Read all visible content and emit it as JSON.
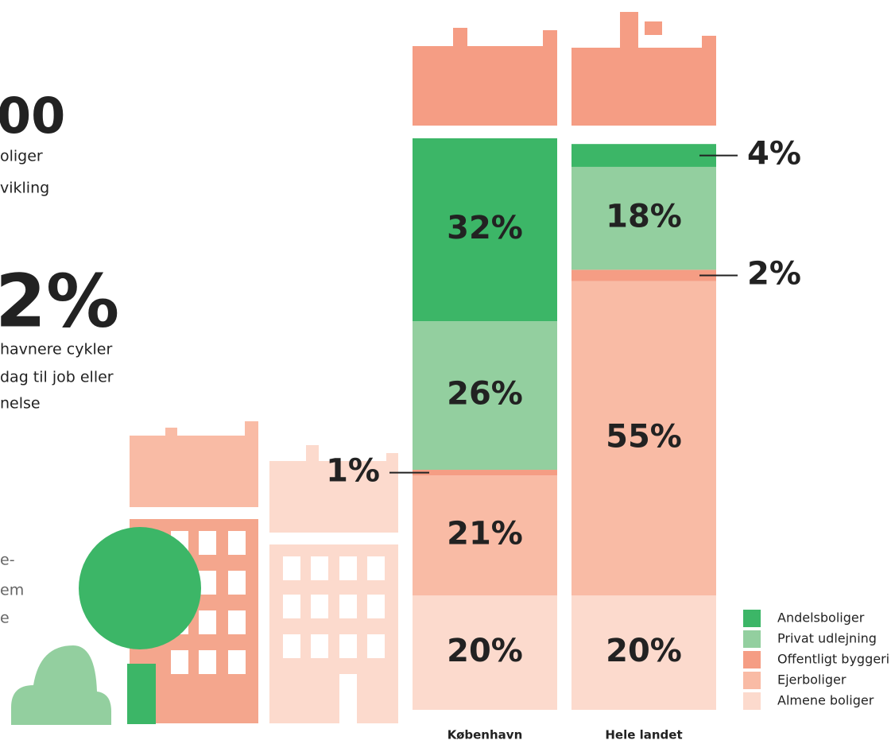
{
  "left_panel": {
    "figure1": "00",
    "lines1": [
      "oliger",
      "vikling"
    ],
    "figure2": "2%",
    "lines2": [
      "havnere cykler",
      "dag til job eller",
      "nelse"
    ],
    "lines3": [
      "e-",
      "em",
      "e"
    ]
  },
  "chart_data": {
    "type": "stacked-bar",
    "categories": [
      "København",
      "Hele landet"
    ],
    "series": [
      {
        "name": "Almene boliger",
        "color": "#fcdacd",
        "values": [
          20,
          20
        ],
        "value_labels": [
          "20%",
          "20%"
        ]
      },
      {
        "name": "Ejerboliger",
        "color": "#f9bba5",
        "values": [
          21,
          55
        ],
        "value_labels": [
          "21%",
          "55%"
        ]
      },
      {
        "name": "Offentligt byggeri",
        "color": "#f59d84",
        "values": [
          1,
          2
        ],
        "value_labels": [
          "1%",
          "2%"
        ]
      },
      {
        "name": "Privat udlejning",
        "color": "#93cf9f",
        "values": [
          26,
          18
        ],
        "value_labels": [
          "26%",
          "18%"
        ]
      },
      {
        "name": "Andelsboliger",
        "color": "#3cb667",
        "values": [
          32,
          4
        ],
        "value_labels": [
          "32%",
          "4%"
        ]
      }
    ]
  }
}
